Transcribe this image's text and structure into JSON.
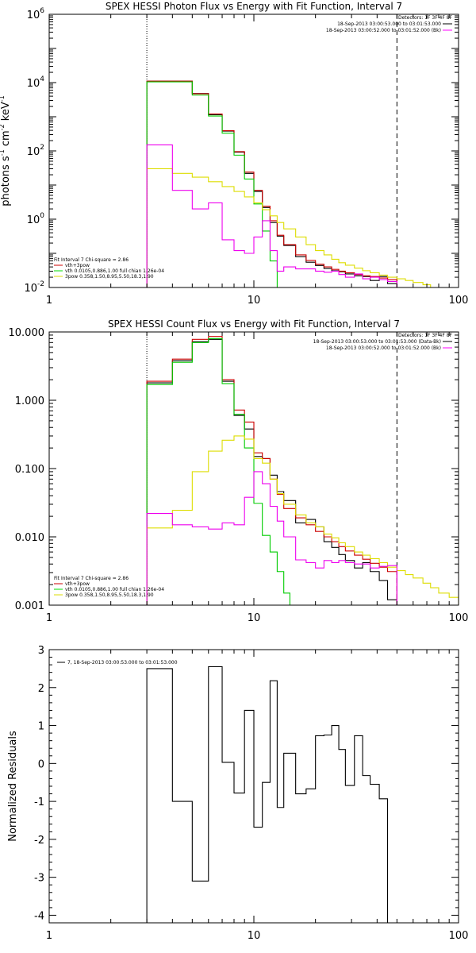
{
  "chart_data": [
    {
      "type": "line",
      "title": "SPEX HESSI Photon Flux vs Energy with Fit Function, Interval 7",
      "ylabel": "photons s$^{-1}$ cm$^{-2}$ keV$^{-1}$",
      "ylabel_parts": [
        "photons s",
        "-1",
        " cm",
        "-2",
        " keV",
        "-1"
      ],
      "xscale": "log",
      "yscale": "log",
      "xlim": [
        1,
        100
      ],
      "ylim": [
        0.01,
        1000000
      ],
      "xticks": [
        {
          "v": 1,
          "label": "1"
        },
        {
          "v": 10,
          "label": "10"
        },
        {
          "v": 100,
          "label": "100"
        }
      ],
      "yticks": [
        {
          "v": 0.01,
          "base": "10",
          "exp": "-2"
        },
        {
          "v": 1,
          "base": "10",
          "exp": "0"
        },
        {
          "v": 100,
          "base": "10",
          "exp": "2"
        },
        {
          "v": 10000,
          "base": "10",
          "exp": "4"
        },
        {
          "v": 1000000,
          "base": "10",
          "exp": "6"
        }
      ],
      "vlines": [
        {
          "x": 3,
          "style": "dotted"
        },
        {
          "x": 50,
          "style": "dashed"
        }
      ],
      "legend_top_right": {
        "title": "Detectors: 1F 3F 4F 8F",
        "entries": [
          {
            "label": "18-Sep-2013 03:00:53.000 to 03:01:53.000",
            "color": "#000000"
          },
          {
            "label": "18-Sep-2013 03:00:52.000 to 03:01:52.000 (Bk)",
            "color": "#ff00ff"
          }
        ]
      },
      "legend_bottom_left": {
        "title": "Fit Interval  7   Chi-square = 2.86",
        "entries": [
          {
            "label": "vth+3pow",
            "color": "#cc0000"
          },
          {
            "label": "vth 0.0105,0.886,1.00  full chian 1.26e-04",
            "color": "#00dd00"
          },
          {
            "label": "3pow 0.358,1.50,8.95,5.50,18.3,1.90",
            "color": "#dddd00"
          }
        ]
      },
      "series": [
        {
          "name": "18-Sep-2013 03:00:53.000 to 03:01:53.000",
          "color": "#000000",
          "step": true,
          "edges": [
            3,
            4,
            5,
            6,
            7,
            8,
            9,
            10,
            11,
            12,
            13,
            14,
            16,
            18,
            20,
            22,
            24,
            26,
            28,
            31,
            34,
            37,
            41,
            45,
            50
          ],
          "values": [
            11000,
            11000,
            4800,
            1150,
            380,
            92,
            22,
            6.5,
            2.2,
            0.8,
            0.32,
            0.17,
            0.08,
            0.055,
            0.044,
            0.036,
            0.031,
            0.029,
            0.025,
            0.022,
            0.021,
            0.016,
            0.021,
            0.013
          ]
        },
        {
          "name": "vth+3pow",
          "color": "#cc0000",
          "step": true,
          "edges": [
            3,
            4,
            5,
            6,
            7,
            8,
            9,
            10,
            11,
            12,
            13,
            14,
            16,
            18,
            20,
            22,
            24,
            26,
            28,
            31,
            34,
            37,
            41,
            45,
            50
          ],
          "values": [
            11000,
            11000,
            4700,
            1200,
            390,
            95,
            24,
            7,
            2.4,
            0.9,
            0.34,
            0.18,
            0.09,
            0.062,
            0.048,
            0.04,
            0.034,
            0.03,
            0.027,
            0.024,
            0.022,
            0.021,
            0.019,
            0.017
          ]
        },
        {
          "name": "vth",
          "color": "#00cc00",
          "step": true,
          "edges": [
            3,
            4,
            5,
            6,
            7,
            8,
            9,
            10,
            11,
            12,
            13,
            14
          ],
          "values": [
            10500,
            10500,
            4300,
            1050,
            330,
            75,
            15,
            2.8,
            0.45,
            0.06,
            0.01
          ]
        },
        {
          "name": "3pow",
          "color": "#dddd00",
          "step": true,
          "edges": [
            3,
            4,
            5,
            6,
            7,
            8,
            9,
            10,
            11,
            12,
            13,
            14,
            16,
            18,
            20,
            22,
            24,
            26,
            28,
            31,
            34,
            37,
            41,
            45,
            50,
            55,
            60,
            67,
            73,
            80
          ],
          "values": [
            30,
            22,
            17,
            12.5,
            9,
            6.5,
            4.5,
            3,
            1.9,
            1.25,
            0.8,
            0.52,
            0.3,
            0.18,
            0.12,
            0.09,
            0.067,
            0.053,
            0.045,
            0.037,
            0.031,
            0.027,
            0.023,
            0.02,
            0.018,
            0.016,
            0.014,
            0.012,
            0.01
          ]
        },
        {
          "name": "18-Sep-2013 03:00:52.000 to 03:01:52.000 (Bk)",
          "color": "#ee00ee",
          "step": true,
          "edges": [
            3,
            4,
            5,
            6,
            7,
            8,
            9,
            10,
            11,
            12,
            13,
            14,
            16,
            18,
            20,
            22,
            24,
            26,
            28,
            31,
            34,
            37,
            41,
            45,
            50
          ],
          "values": [
            150,
            7,
            2,
            3,
            0.25,
            0.12,
            0.1,
            0.3,
            0.9,
            0.12,
            0.03,
            0.04,
            0.035,
            0.035,
            0.03,
            0.028,
            0.03,
            0.024,
            0.02,
            0.025,
            0.018,
            0.02,
            0.017,
            0.015
          ]
        }
      ]
    },
    {
      "type": "line",
      "title": "SPEX HESSI Count Flux vs Energy with Fit Function, Interval 7",
      "xscale": "log",
      "yscale": "log",
      "xlim": [
        1,
        100
      ],
      "ylim": [
        0.001,
        10
      ],
      "xticks": [
        {
          "v": 1,
          "label": "1"
        },
        {
          "v": 10,
          "label": "10"
        },
        {
          "v": 100,
          "label": "100"
        }
      ],
      "yticks": [
        {
          "v": 0.001,
          "label": "0.001"
        },
        {
          "v": 0.01,
          "label": "0.010"
        },
        {
          "v": 0.1,
          "label": "0.100"
        },
        {
          "v": 1,
          "label": "1.000"
        },
        {
          "v": 10,
          "label": "10.000"
        }
      ],
      "vlines": [
        {
          "x": 3,
          "style": "dotted"
        },
        {
          "x": 50,
          "style": "dashed"
        }
      ],
      "legend_top_right": {
        "title": "Detectors: 1F 3F 4F 8F",
        "entries": [
          {
            "label": "18-Sep-2013 03:00:53.000 to 03:01:53.000 (Data-Bk)",
            "color": "#000000"
          },
          {
            "label": "18-Sep-2013 03:00:52.000 to 03:01:52.000 (Bk)",
            "color": "#ff00ff"
          }
        ]
      },
      "legend_bottom_left": {
        "title": "Fit Interval  7   Chi-square = 2.86",
        "entries": [
          {
            "label": "vth+3pow",
            "color": "#cc0000"
          },
          {
            "label": "vth 0.0105,0.886,1.00  full chian 1.26e-04",
            "color": "#00dd00"
          },
          {
            "label": "3pow 0.358,1.50,8.95,5.50,18.3,1.90",
            "color": "#dddd00"
          }
        ]
      },
      "series": [
        {
          "name": "18-Sep-2013 03:00:53.000 to 03:01:53.000 (Data-Bk)",
          "color": "#000000",
          "step": true,
          "edges": [
            3,
            4,
            5,
            6,
            7,
            8,
            9,
            10,
            11,
            12,
            13,
            14,
            16,
            18,
            20,
            22,
            24,
            26,
            28,
            31,
            34,
            37,
            41,
            45,
            50
          ],
          "values": [
            1.8,
            3.8,
            7.2,
            7.8,
            1.9,
            0.6,
            0.38,
            0.15,
            0.14,
            0.08,
            0.046,
            0.034,
            0.016,
            0.018,
            0.014,
            0.0085,
            0.007,
            0.0055,
            0.0045,
            0.0035,
            0.0042,
            0.0031,
            0.0023,
            0.0012
          ]
        },
        {
          "name": "vth+3pow",
          "color": "#cc0000",
          "step": true,
          "edges": [
            3,
            4,
            5,
            6,
            7,
            8,
            9,
            10,
            11,
            12,
            13,
            14,
            16,
            18,
            20,
            22,
            24,
            26,
            28,
            31,
            34,
            37,
            41,
            45,
            50
          ],
          "values": [
            1.9,
            4.0,
            7.8,
            8.6,
            2.0,
            0.72,
            0.48,
            0.17,
            0.14,
            0.07,
            0.042,
            0.026,
            0.019,
            0.015,
            0.012,
            0.01,
            0.0085,
            0.0072,
            0.0062,
            0.0054,
            0.0047,
            0.0041,
            0.0036,
            0.0031
          ]
        },
        {
          "name": "vth",
          "color": "#00cc00",
          "step": true,
          "edges": [
            3,
            4,
            5,
            6,
            7,
            8,
            9,
            10,
            11,
            12,
            13,
            14,
            15
          ],
          "values": [
            1.7,
            3.6,
            7.0,
            8.0,
            1.75,
            0.62,
            0.2,
            0.031,
            0.0105,
            0.006,
            0.0031,
            0.0015
          ]
        },
        {
          "name": "3pow",
          "color": "#dddd00",
          "step": true,
          "edges": [
            3,
            4,
            5,
            6,
            7,
            8,
            9,
            10,
            11,
            12,
            13,
            14,
            16,
            18,
            20,
            22,
            24,
            26,
            28,
            31,
            34,
            37,
            41,
            45,
            50,
            55,
            60,
            67,
            73,
            80,
            90,
            100
          ],
          "values": [
            0.0135,
            0.0245,
            0.09,
            0.18,
            0.26,
            0.3,
            0.27,
            0.14,
            0.12,
            0.07,
            0.043,
            0.03,
            0.021,
            0.016,
            0.014,
            0.011,
            0.0097,
            0.0082,
            0.0072,
            0.006,
            0.0054,
            0.0048,
            0.0042,
            0.0036,
            0.0032,
            0.0028,
            0.0025,
            0.0021,
            0.0018,
            0.0015,
            0.0013
          ]
        },
        {
          "name": "18-Sep-2013 03:00:52.000 to 03:01:52.000 (Bk)",
          "color": "#ee00ee",
          "step": true,
          "edges": [
            3,
            4,
            5,
            6,
            7,
            8,
            9,
            10,
            11,
            12,
            13,
            14,
            16,
            18,
            20,
            22,
            24,
            26,
            28,
            31,
            34,
            37,
            41,
            45,
            50
          ],
          "values": [
            0.022,
            0.015,
            0.014,
            0.013,
            0.016,
            0.015,
            0.038,
            0.09,
            0.06,
            0.028,
            0.017,
            0.01,
            0.0046,
            0.0042,
            0.0035,
            0.0045,
            0.0042,
            0.0045,
            0.0042,
            0.004,
            0.004,
            0.0035,
            0.0037,
            0.0038
          ]
        }
      ]
    },
    {
      "type": "line",
      "ylabel": "Normalized Residuals",
      "xscale": "log",
      "yscale": "linear",
      "xlim": [
        1,
        100
      ],
      "ylim": [
        -4.2,
        3
      ],
      "xticks": [
        {
          "v": 1,
          "label": "1"
        },
        {
          "v": 10,
          "label": "10"
        },
        {
          "v": 100,
          "label": "100"
        }
      ],
      "yticks": [
        {
          "v": 3,
          "label": "3"
        },
        {
          "v": 2,
          "label": "2"
        },
        {
          "v": 1,
          "label": "1"
        },
        {
          "v": 0,
          "label": "0"
        },
        {
          "v": -1,
          "label": "-1"
        },
        {
          "v": -2,
          "label": "-2"
        },
        {
          "v": -3,
          "label": "-3"
        },
        {
          "v": -4,
          "label": "-4"
        }
      ],
      "legend_top_left": {
        "entries": [
          {
            "label": "7, 18-Sep-2013 03:00:53.000 to 03:01:53.000",
            "color": "#000000"
          }
        ]
      },
      "series": [
        {
          "name": "7, 18-Sep-2013 03:00:53.000 to 03:01:53.000",
          "color": "#000000",
          "step": true,
          "edges": [
            3,
            4,
            5,
            6,
            7,
            8,
            9,
            10,
            11,
            12,
            13,
            14,
            16,
            18,
            20,
            22,
            24,
            26,
            28,
            31,
            34,
            37,
            41,
            45,
            50
          ],
          "values": [
            2.5,
            -1.0,
            -3.1,
            2.55,
            0.03,
            -0.78,
            1.4,
            -1.68,
            -0.5,
            2.18,
            -1.16,
            0.27,
            -0.8,
            -0.67,
            0.73,
            0.75,
            1.0,
            0.37,
            -0.58,
            0.73,
            -0.32,
            -0.55,
            -0.93,
            -4.2
          ]
        }
      ]
    }
  ]
}
